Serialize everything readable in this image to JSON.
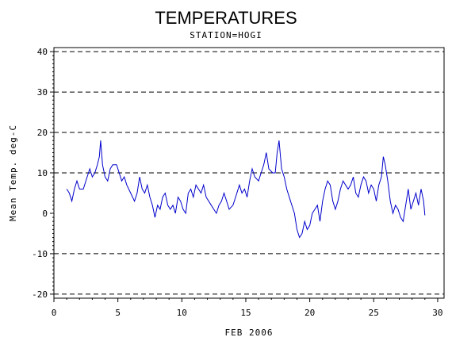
{
  "chart_data": {
    "type": "line",
    "title": "TEMPERATURES",
    "subtitle": "STATION=HOGI",
    "xlabel": "FEB 2006",
    "ylabel": "Mean Temp. deg-C",
    "xlim": [
      0,
      30.5
    ],
    "ylim": [
      -21,
      41
    ],
    "x_ticks": [
      0,
      5,
      10,
      15,
      20,
      25,
      30
    ],
    "y_ticks": [
      -20,
      -10,
      0,
      10,
      20,
      30,
      40
    ],
    "y_gridlines": [
      -20,
      -10,
      10,
      20,
      30,
      40
    ],
    "grid": "dashed horizontal",
    "line_color": "#0000cc",
    "series": [
      {
        "values": [
          [
            1.0,
            6
          ],
          [
            1.2,
            5
          ],
          [
            1.4,
            3
          ],
          [
            1.6,
            6
          ],
          [
            1.8,
            8
          ],
          [
            2.0,
            6
          ],
          [
            2.3,
            6
          ],
          [
            2.6,
            9
          ],
          [
            2.8,
            11
          ],
          [
            3.0,
            9
          ],
          [
            3.2,
            10
          ],
          [
            3.4,
            12
          ],
          [
            3.55,
            14
          ],
          [
            3.65,
            18
          ],
          [
            3.8,
            12
          ],
          [
            4.0,
            9
          ],
          [
            4.2,
            8
          ],
          [
            4.4,
            11
          ],
          [
            4.6,
            12
          ],
          [
            4.9,
            12
          ],
          [
            5.1,
            10
          ],
          [
            5.3,
            8
          ],
          [
            5.5,
            9
          ],
          [
            5.7,
            7
          ],
          [
            6.0,
            5
          ],
          [
            6.3,
            3
          ],
          [
            6.5,
            5
          ],
          [
            6.7,
            9
          ],
          [
            6.9,
            6
          ],
          [
            7.1,
            5
          ],
          [
            7.3,
            7
          ],
          [
            7.5,
            4
          ],
          [
            7.7,
            2
          ],
          [
            7.9,
            -1
          ],
          [
            8.1,
            2
          ],
          [
            8.3,
            1
          ],
          [
            8.5,
            4
          ],
          [
            8.7,
            5
          ],
          [
            8.9,
            2
          ],
          [
            9.1,
            1
          ],
          [
            9.3,
            2
          ],
          [
            9.5,
            0
          ],
          [
            9.7,
            4
          ],
          [
            9.9,
            3
          ],
          [
            10.1,
            1
          ],
          [
            10.3,
            0
          ],
          [
            10.5,
            5
          ],
          [
            10.7,
            6
          ],
          [
            10.9,
            4
          ],
          [
            11.1,
            7
          ],
          [
            11.3,
            6
          ],
          [
            11.5,
            5
          ],
          [
            11.7,
            7
          ],
          [
            11.9,
            4
          ],
          [
            12.1,
            3
          ],
          [
            12.3,
            2
          ],
          [
            12.5,
            1
          ],
          [
            12.7,
            0
          ],
          [
            12.9,
            2
          ],
          [
            13.1,
            3
          ],
          [
            13.3,
            5
          ],
          [
            13.5,
            3
          ],
          [
            13.7,
            1
          ],
          [
            14.0,
            2
          ],
          [
            14.2,
            4
          ],
          [
            14.5,
            7
          ],
          [
            14.7,
            5
          ],
          [
            14.9,
            6
          ],
          [
            15.1,
            4
          ],
          [
            15.3,
            8
          ],
          [
            15.5,
            11
          ],
          [
            15.7,
            9
          ],
          [
            16.0,
            8
          ],
          [
            16.2,
            10
          ],
          [
            16.4,
            12
          ],
          [
            16.6,
            15
          ],
          [
            16.8,
            11
          ],
          [
            17.1,
            10
          ],
          [
            17.3,
            10
          ],
          [
            17.45,
            15
          ],
          [
            17.6,
            18
          ],
          [
            17.8,
            11
          ],
          [
            18.0,
            9
          ],
          [
            18.2,
            6
          ],
          [
            18.5,
            3
          ],
          [
            18.8,
            0
          ],
          [
            19.0,
            -4
          ],
          [
            19.2,
            -6
          ],
          [
            19.4,
            -5
          ],
          [
            19.6,
            -2
          ],
          [
            19.8,
            -4
          ],
          [
            20.0,
            -3
          ],
          [
            20.2,
            0
          ],
          [
            20.4,
            1
          ],
          [
            20.6,
            2
          ],
          [
            20.8,
            -2
          ],
          [
            21.0,
            3
          ],
          [
            21.2,
            6
          ],
          [
            21.4,
            8
          ],
          [
            21.6,
            7
          ],
          [
            21.8,
            3
          ],
          [
            22.0,
            1
          ],
          [
            22.2,
            3
          ],
          [
            22.4,
            6
          ],
          [
            22.6,
            8
          ],
          [
            22.8,
            7
          ],
          [
            23.0,
            6
          ],
          [
            23.2,
            7
          ],
          [
            23.4,
            9
          ],
          [
            23.6,
            5
          ],
          [
            23.8,
            4
          ],
          [
            24.0,
            7
          ],
          [
            24.2,
            9
          ],
          [
            24.4,
            8
          ],
          [
            24.6,
            5
          ],
          [
            24.8,
            7
          ],
          [
            25.0,
            6
          ],
          [
            25.2,
            3
          ],
          [
            25.4,
            7
          ],
          [
            25.6,
            9
          ],
          [
            25.75,
            14
          ],
          [
            25.9,
            12
          ],
          [
            26.1,
            8
          ],
          [
            26.3,
            3
          ],
          [
            26.5,
            0
          ],
          [
            26.7,
            2
          ],
          [
            26.9,
            1
          ],
          [
            27.1,
            -1
          ],
          [
            27.3,
            -2
          ],
          [
            27.5,
            2
          ],
          [
            27.7,
            6
          ],
          [
            27.9,
            1
          ],
          [
            28.1,
            3
          ],
          [
            28.3,
            5
          ],
          [
            28.5,
            2
          ],
          [
            28.7,
            6
          ],
          [
            28.9,
            3
          ],
          [
            29.0,
            -0.5
          ]
        ]
      }
    ]
  }
}
